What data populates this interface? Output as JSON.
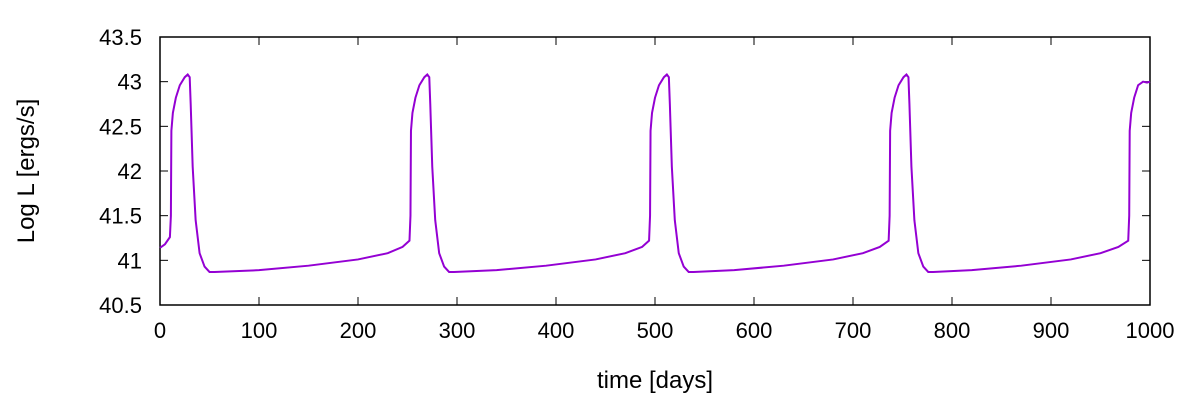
{
  "chart_data": {
    "type": "line",
    "title": "",
    "xlabel": "time [days]",
    "ylabel": "Log L [ergs/s]",
    "xlim": [
      0,
      1000
    ],
    "ylim": [
      40.5,
      43.5
    ],
    "x_ticks": [
      0,
      100,
      200,
      300,
      400,
      500,
      600,
      700,
      800,
      900,
      1000
    ],
    "y_ticks": [
      40.5,
      41,
      41.5,
      42,
      42.5,
      43,
      43.5
    ],
    "x_tick_labels": [
      "0",
      "100",
      "200",
      "300",
      "400",
      "500",
      "600",
      "700",
      "800",
      "900",
      "1000"
    ],
    "y_tick_labels": [
      "40.5",
      "41",
      "41.5",
      "42",
      "42.5",
      "43",
      "43.5"
    ],
    "grid": false,
    "line_color": "#9400d3",
    "series": [
      {
        "x": [
          0,
          5,
          10,
          11,
          11.5,
          13,
          16,
          20,
          25,
          28,
          30,
          31,
          33,
          36,
          40,
          45,
          50,
          55,
          100,
          150,
          200,
          230,
          245,
          252,
          253,
          253.5,
          255,
          258,
          262,
          267,
          270,
          272,
          273,
          275,
          278,
          282,
          287,
          292,
          297,
          340,
          390,
          440,
          470,
          487,
          494,
          495,
          495.5,
          497,
          500,
          504,
          509,
          512,
          514,
          515,
          517,
          520,
          524,
          529,
          534,
          539,
          580,
          630,
          680,
          710,
          727,
          736,
          737,
          737.5,
          739,
          742,
          746,
          751,
          754,
          756,
          757,
          759,
          762,
          766,
          771,
          776,
          781,
          820,
          870,
          920,
          950,
          968,
          978,
          979,
          979.5,
          981,
          984,
          988,
          993,
          997,
          1000
        ],
        "y": [
          41.14,
          41.18,
          41.26,
          41.5,
          42.45,
          42.65,
          42.82,
          42.96,
          43.05,
          43.08,
          43.05,
          42.75,
          42.05,
          41.45,
          41.08,
          40.93,
          40.87,
          40.87,
          40.89,
          40.94,
          41.01,
          41.08,
          41.15,
          41.22,
          41.5,
          42.45,
          42.65,
          42.82,
          42.96,
          43.05,
          43.08,
          43.05,
          42.75,
          42.05,
          41.45,
          41.08,
          40.93,
          40.87,
          40.87,
          40.89,
          40.94,
          41.01,
          41.08,
          41.15,
          41.22,
          41.5,
          42.45,
          42.65,
          42.82,
          42.96,
          43.05,
          43.08,
          43.05,
          42.75,
          42.05,
          41.45,
          41.08,
          40.93,
          40.87,
          40.87,
          40.89,
          40.94,
          41.01,
          41.08,
          41.15,
          41.22,
          41.5,
          42.45,
          42.65,
          42.82,
          42.96,
          43.05,
          43.08,
          43.05,
          42.75,
          42.05,
          41.45,
          41.08,
          40.93,
          40.87,
          40.87,
          40.89,
          40.94,
          41.01,
          41.08,
          41.15,
          41.22,
          41.5,
          42.45,
          42.65,
          42.82,
          42.96,
          43.0,
          42.99,
          43.0
        ]
      }
    ]
  }
}
